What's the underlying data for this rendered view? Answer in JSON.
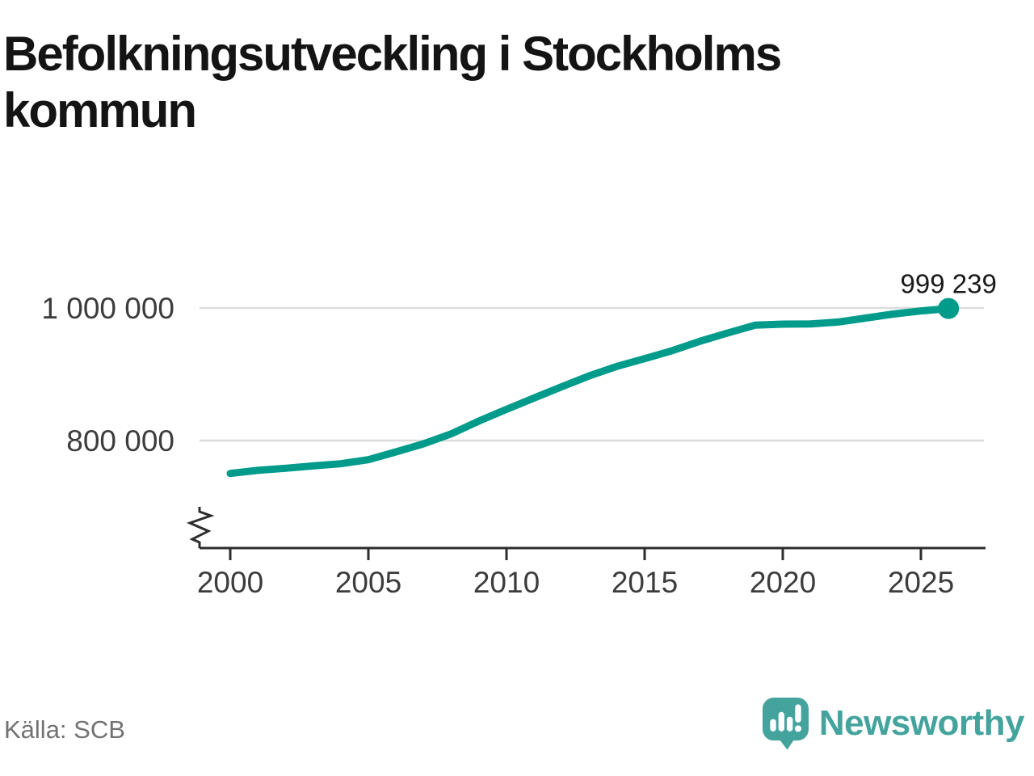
{
  "title": "Befolkningsutveckling i Stockholms kommun",
  "source": "Källa: SCB",
  "logo": {
    "wordmark": "Newsworthy"
  },
  "colors": {
    "line": "#009b8a",
    "logo": "#44a49d",
    "grid": "#dcdcdc",
    "axis": "#2d2d2d",
    "tick_label": "#3c3c3c",
    "title": "#141414",
    "source": "#727272",
    "annotation": "#1a1a1a"
  },
  "chart_data": {
    "type": "line",
    "title": "Befolkningsutveckling i Stockholms kommun",
    "x": [
      2000,
      2001,
      2002,
      2003,
      2004,
      2005,
      2006,
      2007,
      2008,
      2009,
      2010,
      2011,
      2012,
      2013,
      2014,
      2015,
      2016,
      2017,
      2018,
      2019,
      2020,
      2021,
      2022,
      2023,
      2024,
      2025,
      2026
    ],
    "values": [
      750348,
      754948,
      758148,
      761721,
      765044,
      771038,
      782885,
      795163,
      810120,
      829417,
      847073,
      864324,
      881235,
      897700,
      911989,
      923516,
      935619,
      949761,
      962154,
      974073,
      975551,
      975819,
      978770,
      984748,
      990817,
      995497,
      999239
    ],
    "end_label": "999 239",
    "end_value": 999239,
    "y_ticks": [
      {
        "value": 1000000,
        "label": "1 000 000"
      },
      {
        "value": 800000,
        "label": "800 000"
      }
    ],
    "x_ticks": [
      2000,
      2005,
      2010,
      2015,
      2020,
      2025
    ],
    "xlabel": "",
    "ylabel": "",
    "ylim": [
      740000,
      1010000
    ],
    "grid": "horizontal",
    "legend": "none",
    "axis_break": true
  }
}
